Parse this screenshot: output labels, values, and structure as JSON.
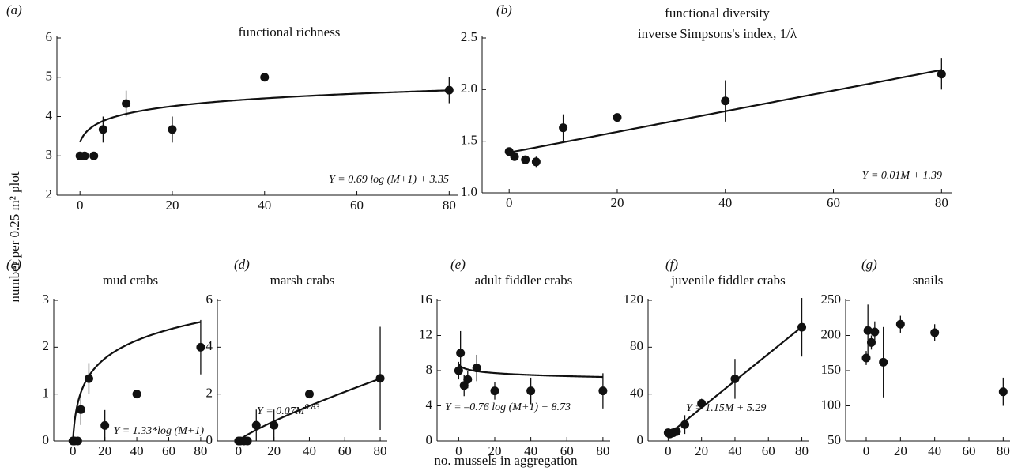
{
  "ylabel": "number per 0.25 m² plot",
  "xlabel": "no. mussels in aggregation",
  "chart_data": [
    {
      "type": "scatter",
      "panel": "(a)",
      "title": "functional richness",
      "x": [
        0,
        1,
        3,
        5,
        10,
        20,
        40,
        80
      ],
      "series": [
        {
          "color": "#111111",
          "values": [
            3,
            3,
            3,
            3.67,
            4.33,
            3.67,
            5,
            4.67
          ],
          "errors": [
            0,
            0,
            0,
            0.33,
            0.33,
            0.33,
            0,
            0.33
          ]
        }
      ],
      "fit": {
        "model": "log",
        "coef": [
          0.69,
          3.35
        ],
        "equation": "Y = 0.69 log (M+1) + 3.35"
      },
      "xlim": [
        -5,
        82
      ],
      "ylim": [
        2,
        6
      ],
      "xticks": [
        0,
        20,
        40,
        60,
        80
      ],
      "yticks": [
        2,
        3,
        4,
        5,
        6
      ]
    },
    {
      "type": "scatter",
      "panel": "(b)",
      "title": "functional diversity",
      "subtitle": "inverse Simpsons's index, 1/λ",
      "x": [
        0,
        1,
        3,
        5,
        10,
        20,
        40,
        80
      ],
      "series": [
        {
          "color": "#111111",
          "values": [
            1.4,
            1.35,
            1.32,
            1.3,
            1.63,
            1.73,
            1.89,
            2.15
          ],
          "errors": [
            0.03,
            0.02,
            0.03,
            0.05,
            0.13,
            0.03,
            0.2,
            0.15
          ]
        }
      ],
      "fit": {
        "model": "linear",
        "coef": [
          0.01,
          1.39
        ],
        "equation": "Y = 0.01M + 1.39"
      },
      "xlim": [
        -5,
        82
      ],
      "ylim": [
        1,
        2.5
      ],
      "xticks": [
        0,
        20,
        40,
        60,
        80
      ],
      "yticks": [
        {
          "value": 1,
          "label": "1.0"
        },
        1.5,
        {
          "value": 2,
          "label": "2.0"
        },
        2.5
      ]
    },
    {
      "type": "scatter",
      "panel": "(c)",
      "title": "mud crabs",
      "x": [
        0,
        1,
        3,
        5,
        10,
        20,
        40,
        80
      ],
      "series": [
        {
          "color": "#111111",
          "values": [
            0,
            0,
            0,
            0.67,
            1.33,
            0.33,
            1,
            2
          ],
          "errors": [
            0,
            0,
            0,
            0.33,
            0.33,
            0.33,
            0,
            0.58
          ]
        }
      ],
      "fit": {
        "model": "log",
        "coef": [
          1.33,
          0
        ],
        "equation": "Y = 1.33*log (M+1)"
      },
      "xlim": [
        -12,
        84
      ],
      "ylim": [
        0,
        3
      ],
      "xticks": [
        0,
        20,
        40,
        60,
        80
      ],
      "yticks": [
        0,
        1,
        2,
        3
      ]
    },
    {
      "type": "scatter",
      "panel": "(d)",
      "title": "marsh crabs",
      "x": [
        0,
        1,
        3,
        5,
        10,
        20,
        40,
        80
      ],
      "series": [
        {
          "color": "#111111",
          "values": [
            0,
            0,
            0,
            0,
            0.67,
            0.67,
            2,
            2.67
          ],
          "errors": [
            0,
            0,
            0,
            0,
            0.67,
            0.67,
            0,
            2.2
          ]
        }
      ],
      "fit": {
        "model": "power",
        "coef": [
          0.07,
          0.83
        ],
        "equation": "Y = 0.07M",
        "exponent": "0.83"
      },
      "xlim": [
        -12,
        84
      ],
      "ylim": [
        0,
        6
      ],
      "xticks": [
        0,
        20,
        40,
        60,
        80
      ],
      "yticks": [
        0,
        2,
        4,
        6
      ]
    },
    {
      "type": "scatter",
      "panel": "(e)",
      "title": "adult fiddler crabs",
      "x": [
        0,
        1,
        3,
        5,
        10,
        20,
        40,
        80
      ],
      "series": [
        {
          "color": "#111111",
          "values": [
            8,
            10,
            6.3,
            7,
            8.3,
            5.7,
            5.7,
            5.7
          ],
          "errors": [
            1,
            2.5,
            1.2,
            1,
            1.5,
            1,
            1.5,
            2
          ]
        }
      ],
      "fit": {
        "model": "log",
        "coef": [
          -0.76,
          8.73
        ],
        "equation": "Y = –0.76 log (M+1) + 8.73"
      },
      "xlim": [
        -12,
        84
      ],
      "ylim": [
        0,
        16
      ],
      "xticks": [
        0,
        20,
        40,
        60,
        80
      ],
      "yticks": [
        0,
        4,
        8,
        12,
        16
      ]
    },
    {
      "type": "scatter",
      "panel": "(f)",
      "title": "juvenile fiddler crabs",
      "x": [
        0,
        1,
        3,
        5,
        10,
        20,
        40,
        80
      ],
      "series": [
        {
          "color": "#111111",
          "values": [
            7,
            6,
            7,
            8,
            14,
            32,
            53,
            97
          ],
          "errors": [
            2,
            2,
            2,
            3,
            8,
            4,
            17,
            25
          ]
        }
      ],
      "fit": {
        "model": "linear",
        "coef": [
          1.15,
          5.29
        ],
        "equation": "Y = 1.15M + 5.29"
      },
      "xlim": [
        -12,
        84
      ],
      "ylim": [
        0,
        120
      ],
      "xticks": [
        0,
        20,
        40,
        60,
        80
      ],
      "yticks": [
        0,
        40,
        80,
        120
      ]
    },
    {
      "type": "scatter",
      "panel": "(g)",
      "title": "snails",
      "x": [
        0,
        1,
        3,
        5,
        10,
        20,
        40,
        80
      ],
      "series": [
        {
          "color": "#111111",
          "values": [
            168,
            207,
            190,
            205,
            162,
            216,
            204,
            120
          ],
          "errors": [
            10,
            37,
            10,
            15,
            50,
            12,
            12,
            20
          ]
        }
      ],
      "xlim": [
        -12,
        84
      ],
      "ylim": [
        50,
        250
      ],
      "xticks": [
        0,
        20,
        40,
        60,
        80
      ],
      "yticks": [
        50,
        100,
        150,
        200,
        250
      ]
    }
  ]
}
